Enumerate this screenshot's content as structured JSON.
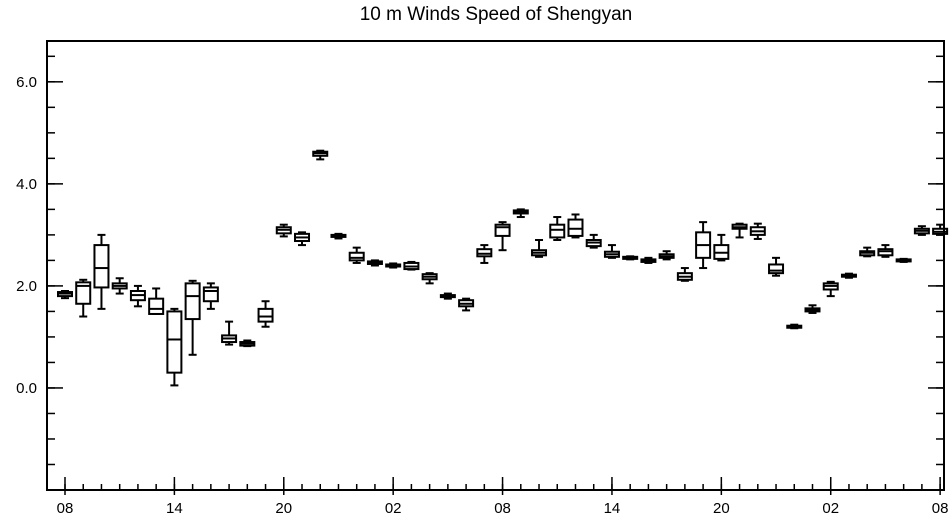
{
  "chart_data": {
    "type": "box",
    "title": "10 m Winds Speed of Shengyan",
    "xlabel": "",
    "ylabel": "",
    "ylim": [
      -2.0,
      6.8
    ],
    "yticks": [
      {
        "value": 6.0,
        "label": "6.0"
      },
      {
        "value": 4.0,
        "label": "4.0"
      },
      {
        "value": 2.0,
        "label": "2.0"
      },
      {
        "value": 0.0,
        "label": "0.0"
      }
    ],
    "y_minor_step": 0.5,
    "xlim": [
      0,
      49.2
    ],
    "xticks": [
      {
        "value": 0,
        "label": "08"
      },
      {
        "value": 6,
        "label": "14"
      },
      {
        "value": 12,
        "label": "20"
      },
      {
        "value": 18,
        "label": "02"
      },
      {
        "value": 24,
        "label": "08"
      },
      {
        "value": 30,
        "label": "14"
      },
      {
        "value": 36,
        "label": "20"
      },
      {
        "value": 42,
        "label": "02"
      },
      {
        "value": 48,
        "label": "08"
      }
    ],
    "x_minor_step": 1,
    "grid": false,
    "boxes": [
      {
        "x": 0,
        "min": 1.76,
        "q1": 1.8,
        "median": 1.85,
        "q3": 1.88,
        "max": 1.9
      },
      {
        "x": 1,
        "min": 1.4,
        "q1": 1.65,
        "median": 2.0,
        "q3": 2.07,
        "max": 2.12
      },
      {
        "x": 2,
        "min": 1.55,
        "q1": 1.97,
        "median": 2.35,
        "q3": 2.8,
        "max": 3.0
      },
      {
        "x": 3,
        "min": 1.85,
        "q1": 1.95,
        "median": 2.0,
        "q3": 2.05,
        "max": 2.15
      },
      {
        "x": 4,
        "min": 1.6,
        "q1": 1.72,
        "median": 1.82,
        "q3": 1.9,
        "max": 2.0
      },
      {
        "x": 5,
        "min": 1.45,
        "q1": 1.45,
        "median": 1.55,
        "q3": 1.75,
        "max": 1.95
      },
      {
        "x": 6,
        "min": 0.05,
        "q1": 0.3,
        "median": 0.95,
        "q3": 1.5,
        "max": 1.55
      },
      {
        "x": 7,
        "min": 0.65,
        "q1": 1.35,
        "median": 1.8,
        "q3": 2.05,
        "max": 2.1
      },
      {
        "x": 8,
        "min": 1.55,
        "q1": 1.7,
        "median": 1.9,
        "q3": 1.97,
        "max": 2.05
      },
      {
        "x": 9,
        "min": 0.85,
        "q1": 0.9,
        "median": 0.97,
        "q3": 1.03,
        "max": 1.3
      },
      {
        "x": 10,
        "min": 0.82,
        "q1": 0.83,
        "median": 0.87,
        "q3": 0.9,
        "max": 0.93
      },
      {
        "x": 11,
        "min": 1.2,
        "q1": 1.3,
        "median": 1.4,
        "q3": 1.55,
        "max": 1.7
      },
      {
        "x": 12,
        "min": 2.97,
        "q1": 3.03,
        "median": 3.1,
        "q3": 3.15,
        "max": 3.2
      },
      {
        "x": 13,
        "min": 2.8,
        "q1": 2.88,
        "median": 2.95,
        "q3": 3.02,
        "max": 3.05
      },
      {
        "x": 14,
        "min": 4.48,
        "q1": 4.55,
        "median": 4.6,
        "q3": 4.63,
        "max": 4.65
      },
      {
        "x": 15,
        "min": 2.93,
        "q1": 2.96,
        "median": 2.98,
        "q3": 3.0,
        "max": 3.02
      },
      {
        "x": 16,
        "min": 2.45,
        "q1": 2.5,
        "median": 2.55,
        "q3": 2.65,
        "max": 2.75
      },
      {
        "x": 17,
        "min": 2.4,
        "q1": 2.43,
        "median": 2.46,
        "q3": 2.48,
        "max": 2.5
      },
      {
        "x": 18,
        "min": 2.36,
        "q1": 2.38,
        "median": 2.4,
        "q3": 2.42,
        "max": 2.44
      },
      {
        "x": 19,
        "min": 2.32,
        "q1": 2.33,
        "median": 2.38,
        "q3": 2.45,
        "max": 2.47
      },
      {
        "x": 20,
        "min": 2.05,
        "q1": 2.13,
        "median": 2.18,
        "q3": 2.23,
        "max": 2.25
      },
      {
        "x": 21,
        "min": 1.75,
        "q1": 1.78,
        "median": 1.8,
        "q3": 1.82,
        "max": 1.85
      },
      {
        "x": 22,
        "min": 1.52,
        "q1": 1.6,
        "median": 1.65,
        "q3": 1.72,
        "max": 1.75
      },
      {
        "x": 23,
        "min": 2.45,
        "q1": 2.58,
        "median": 2.63,
        "q3": 2.72,
        "max": 2.8
      },
      {
        "x": 24,
        "min": 2.7,
        "q1": 2.98,
        "median": 3.15,
        "q3": 3.2,
        "max": 3.25
      },
      {
        "x": 25,
        "min": 3.35,
        "q1": 3.42,
        "median": 3.45,
        "q3": 3.48,
        "max": 3.5
      },
      {
        "x": 26,
        "min": 2.57,
        "q1": 2.6,
        "median": 2.65,
        "q3": 2.7,
        "max": 2.9
      },
      {
        "x": 27,
        "min": 2.9,
        "q1": 2.95,
        "median": 3.1,
        "q3": 3.2,
        "max": 3.35
      },
      {
        "x": 28,
        "min": 2.95,
        "q1": 2.98,
        "median": 3.12,
        "q3": 3.3,
        "max": 3.4
      },
      {
        "x": 29,
        "min": 2.75,
        "q1": 2.78,
        "median": 2.85,
        "q3": 2.9,
        "max": 3.0
      },
      {
        "x": 30,
        "min": 2.55,
        "q1": 2.57,
        "median": 2.62,
        "q3": 2.67,
        "max": 2.8
      },
      {
        "x": 31,
        "min": 2.52,
        "q1": 2.53,
        "median": 2.55,
        "q3": 2.57,
        "max": 2.58
      },
      {
        "x": 32,
        "min": 2.45,
        "q1": 2.47,
        "median": 2.5,
        "q3": 2.52,
        "max": 2.55
      },
      {
        "x": 33,
        "min": 2.52,
        "q1": 2.55,
        "median": 2.58,
        "q3": 2.62,
        "max": 2.68
      },
      {
        "x": 34,
        "min": 2.1,
        "q1": 2.12,
        "median": 2.18,
        "q3": 2.25,
        "max": 2.35
      },
      {
        "x": 35,
        "min": 2.35,
        "q1": 2.55,
        "median": 2.8,
        "q3": 3.05,
        "max": 3.25
      },
      {
        "x": 36,
        "min": 2.5,
        "q1": 2.53,
        "median": 2.65,
        "q3": 2.8,
        "max": 3.0
      },
      {
        "x": 37,
        "min": 2.95,
        "q1": 3.12,
        "median": 3.15,
        "q3": 3.2,
        "max": 3.22
      },
      {
        "x": 38,
        "min": 2.92,
        "q1": 3.0,
        "median": 3.07,
        "q3": 3.15,
        "max": 3.22
      },
      {
        "x": 39,
        "min": 2.2,
        "q1": 2.25,
        "median": 2.3,
        "q3": 2.42,
        "max": 2.55
      },
      {
        "x": 40,
        "min": 1.17,
        "q1": 1.18,
        "median": 1.2,
        "q3": 1.22,
        "max": 1.24
      },
      {
        "x": 41,
        "min": 1.47,
        "q1": 1.5,
        "median": 1.53,
        "q3": 1.56,
        "max": 1.62
      },
      {
        "x": 42,
        "min": 1.8,
        "q1": 1.93,
        "median": 2.0,
        "q3": 2.05,
        "max": 2.08
      },
      {
        "x": 43,
        "min": 2.16,
        "q1": 2.18,
        "median": 2.2,
        "q3": 2.22,
        "max": 2.24
      },
      {
        "x": 44,
        "min": 2.58,
        "q1": 2.6,
        "median": 2.65,
        "q3": 2.68,
        "max": 2.75
      },
      {
        "x": 45,
        "min": 2.57,
        "q1": 2.6,
        "median": 2.68,
        "q3": 2.72,
        "max": 2.8
      },
      {
        "x": 46,
        "min": 2.47,
        "q1": 2.48,
        "median": 2.5,
        "q3": 2.52,
        "max": 2.53
      },
      {
        "x": 47,
        "min": 3.0,
        "q1": 3.03,
        "median": 3.08,
        "q3": 3.12,
        "max": 3.17
      },
      {
        "x": 48,
        "min": 3.0,
        "q1": 3.02,
        "median": 3.06,
        "q3": 3.12,
        "max": 3.2
      }
    ]
  }
}
